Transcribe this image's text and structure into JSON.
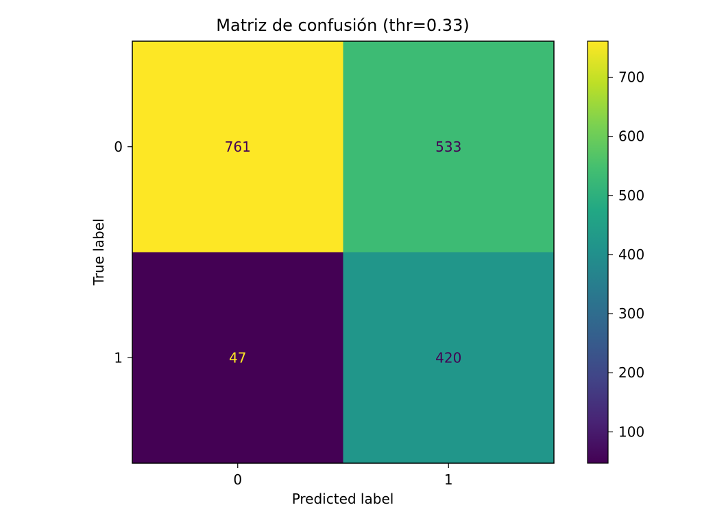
{
  "chart_data": {
    "type": "heatmap",
    "title": "Matriz de confusión (thr=0.33)",
    "xlabel": "Predicted label",
    "ylabel": "True label",
    "x_categories": [
      "0",
      "1"
    ],
    "y_categories": [
      "0",
      "1"
    ],
    "values": [
      [
        761,
        533
      ],
      [
        47,
        420
      ]
    ],
    "colormap": "viridis",
    "color_range": [
      47,
      761
    ],
    "colorbar_ticks": [
      100,
      200,
      300,
      400,
      500,
      600,
      700
    ],
    "annotation_colors": {
      "on_dark": "#fde725",
      "on_light": "#440154"
    },
    "grid": false
  }
}
